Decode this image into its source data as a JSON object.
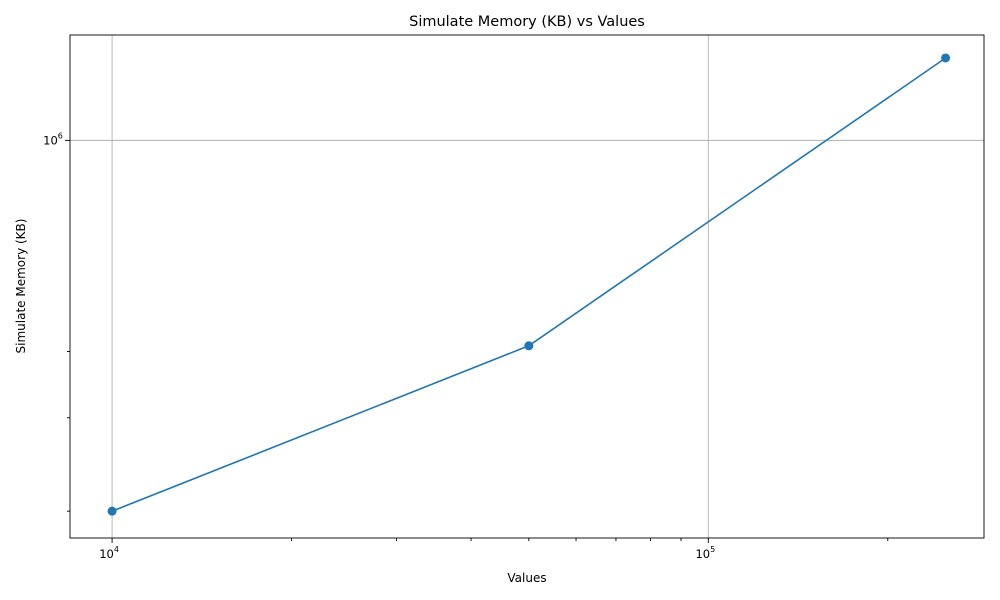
{
  "chart_data": {
    "type": "line",
    "title": "Simulate Memory (KB) vs Values",
    "xlabel": "Values",
    "ylabel": "Simulate Memory (KB)",
    "xscale": "log",
    "yscale": "log",
    "xlim": [
      8500,
      290000
    ],
    "ylim": [
      178000,
      1580000
    ],
    "grid": true,
    "x_major_ticks": [
      {
        "value": 10000,
        "base": "10",
        "exp": "4"
      },
      {
        "value": 100000,
        "base": "10",
        "exp": "5"
      }
    ],
    "y_major_ticks": [
      {
        "value": 1000000,
        "base": "10",
        "exp": "6"
      }
    ],
    "x_minor_ticks": [
      20000,
      30000,
      40000,
      50000,
      60000,
      70000,
      80000,
      90000,
      200000
    ],
    "y_minor_ticks": [
      200000,
      300000,
      400000
    ],
    "series": [
      {
        "color": "#1f77b4",
        "x": [
          10000,
          50000,
          250000
        ],
        "y": [
          200000,
          410000,
          1430000
        ]
      }
    ]
  }
}
